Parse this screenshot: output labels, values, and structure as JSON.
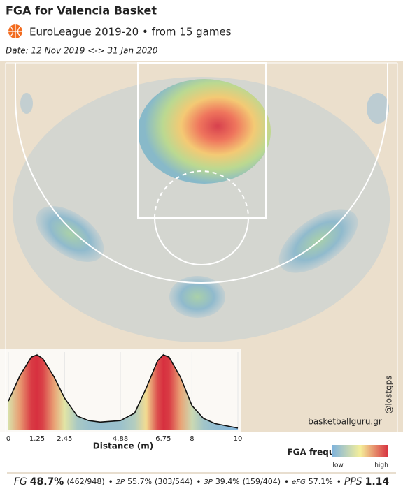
{
  "header": {
    "title": "FGA for Valencia Basket",
    "subtitle": "EuroLeague 2019-20 • from  15 games",
    "date": "Date: 12 Nov 2019 <-> 31 Jan 2020"
  },
  "chart_data": {
    "type": "area",
    "xlabel": "Distance (m)",
    "x": [
      0,
      0.5,
      1.0,
      1.25,
      1.5,
      2.0,
      2.45,
      3.0,
      3.5,
      4.0,
      4.88,
      5.5,
      6.0,
      6.5,
      6.75,
      7.0,
      7.5,
      8.0,
      8.5,
      9.0,
      10.0
    ],
    "values": [
      0.38,
      0.72,
      0.97,
      1.0,
      0.95,
      0.7,
      0.42,
      0.18,
      0.12,
      0.1,
      0.12,
      0.22,
      0.55,
      0.92,
      1.0,
      0.97,
      0.7,
      0.32,
      0.15,
      0.08,
      0.02
    ],
    "xlim": [
      0,
      10
    ],
    "xticks": [
      0,
      1.25,
      2.45,
      4.88,
      6.75,
      8,
      10
    ],
    "ylim": [
      0,
      1
    ]
  },
  "legend": {
    "title": "FGA frequency",
    "low": "low",
    "high": "high"
  },
  "credits": {
    "site": "basketballguru.gr",
    "handle": "@lostgps"
  },
  "stats": [
    {
      "label": "FG",
      "value": "48.7%",
      "detail": "(462/948)"
    },
    {
      "label": "2P",
      "value": "55.7%",
      "detail": "(303/544)"
    },
    {
      "label": "3P",
      "value": "39.4%",
      "detail": "(159/404)"
    },
    {
      "label": "eFG",
      "value": "57.1%"
    },
    {
      "label": "PPS",
      "value": "1.14"
    }
  ]
}
